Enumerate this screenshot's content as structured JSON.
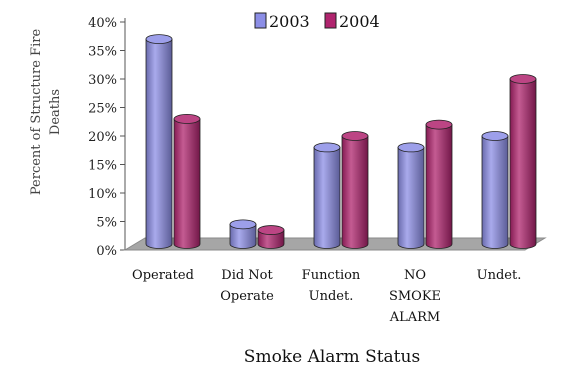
{
  "chart_data": {
    "type": "bar",
    "categories": [
      "Operated",
      "Did Not Operate",
      "Function Undet.",
      "NO SMOKE ALARM",
      "Undet."
    ],
    "category_label_lines": [
      [
        "Operated"
      ],
      [
        "Did Not",
        "Operate"
      ],
      [
        "Function",
        "Undet."
      ],
      [
        "NO",
        "SMOKE",
        "ALARM"
      ],
      [
        "Undet."
      ]
    ],
    "series": [
      {
        "name": "2003",
        "values": [
          37,
          4.5,
          18,
          18,
          20
        ],
        "color": "#8c8ee6"
      },
      {
        "name": "2004",
        "values": [
          23,
          3.5,
          20,
          22,
          30
        ],
        "color": "#b0246e"
      }
    ],
    "y_ticks": [
      "0%",
      "5%",
      "10%",
      "15%",
      "20%",
      "25%",
      "30%",
      "35%",
      "40%"
    ],
    "ylim": [
      0,
      40
    ],
    "xlabel": "Smoke Alarm Status",
    "ylabel": "Percent of Structure Fire Deaths",
    "ylabel_lines": [
      "Percent of Structure Fire",
      "Deaths"
    ],
    "legend_position": "top-right",
    "grid": false
  }
}
